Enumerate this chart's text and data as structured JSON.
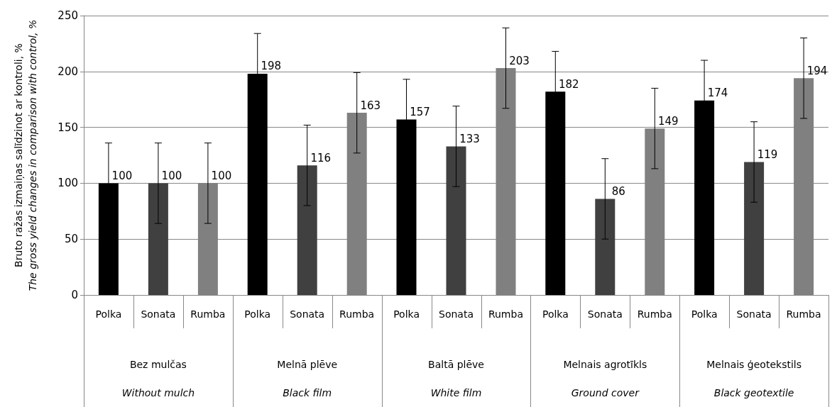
{
  "chart_data": {
    "type": "bar",
    "ylabel": "Bruto ražas izmaiņas salīdzinot ar kontroli, %\nThe gross yield changes in comparison with control, %",
    "categories": [
      "Bez mulčas\nWithout mulch",
      "Melnā plēve\nBlack film",
      "Baltā plēve\nWhite film",
      "Melnais agrotīkls\nGround cover",
      "Melnais ģeotekstils\nBlack geotextile"
    ],
    "series": [
      {
        "name": "Polka",
        "color": "#000000",
        "values": [
          100,
          198,
          157,
          182,
          174
        ],
        "errors": [
          36,
          36,
          36,
          36,
          36
        ]
      },
      {
        "name": "Sonata",
        "color": "#404040",
        "values": [
          100,
          116,
          133,
          86,
          119
        ],
        "errors": [
          36,
          36,
          36,
          36,
          36
        ]
      },
      {
        "name": "Rumba",
        "color": "#808080",
        "values": [
          100,
          163,
          203,
          149,
          194
        ],
        "errors": [
          36,
          36,
          36,
          36,
          36
        ]
      }
    ],
    "ylim": [
      0,
      250
    ],
    "yticks": [
      0,
      50,
      100,
      150,
      200,
      250
    ],
    "grid": "y",
    "data_labels": true,
    "legend": false
  }
}
